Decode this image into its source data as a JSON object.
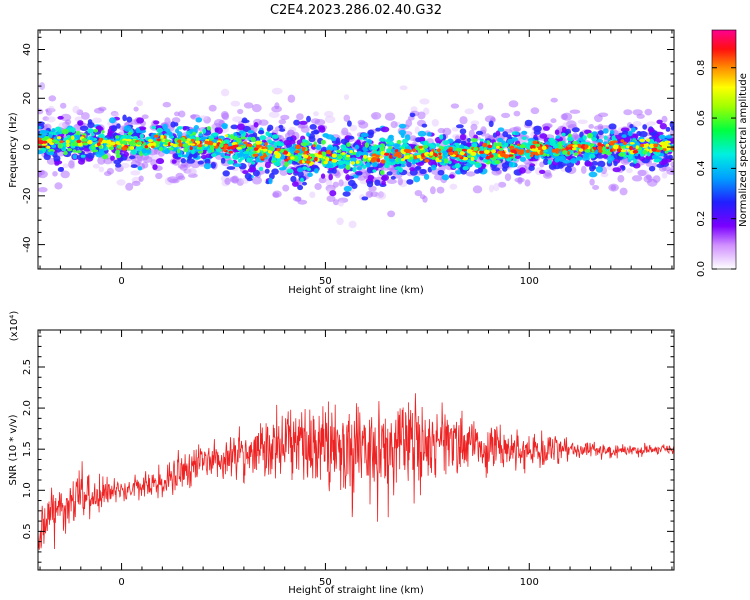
{
  "title": "C2E4.2023.286.02.40.G32",
  "chart_data": [
    {
      "type": "heatmap",
      "xlabel": "Height of straight line (km)",
      "ylabel": "Frequency (Hz)",
      "xlim": [
        -20.5,
        135.5
      ],
      "ylim": [
        -50,
        48
      ],
      "xticks": [
        0,
        50,
        100
      ],
      "yticks": [
        -40,
        -20,
        0,
        20,
        40
      ],
      "colorbar": {
        "label": "Normalized spectral amplitude",
        "range": [
          0,
          0.95
        ],
        "ticks": [
          0.0,
          0.2,
          0.4,
          0.6,
          0.8
        ],
        "colormap": "rainbow (white-purple-blue-cyan-green-yellow-red-magenta)"
      },
      "ridge_center_hz": {
        "x_km": [
          -20,
          -10,
          0,
          10,
          20,
          30,
          40,
          50,
          60,
          70,
          80,
          90,
          100,
          110,
          120,
          135
        ],
        "freq": [
          2,
          2,
          1,
          2,
          1,
          0,
          -3,
          -4,
          -4,
          -3,
          -3,
          -2,
          -1,
          -1,
          0,
          0
        ]
      }
    },
    {
      "type": "line",
      "xlabel": "Height of straight line (km)",
      "ylabel": "SNR (10 * v/v)",
      "y_multiplier": "(x10⁴)",
      "xlim": [
        -20.5,
        135.5
      ],
      "ylim": [
        0.03,
        2.95
      ],
      "xticks": [
        0,
        50,
        100
      ],
      "yticks": [
        0.5,
        1.0,
        1.5,
        2.0,
        2.5
      ],
      "series": [
        {
          "color": "#ee2222",
          "envelope": {
            "x_km": [
              -20,
              -10,
              0,
              10,
              20,
              30,
              40,
              50,
              60,
              70,
              80,
              90,
              100,
              110,
              120,
              135
            ],
            "center": [
              0.55,
              0.95,
              1.0,
              1.1,
              1.35,
              1.45,
              1.55,
              1.55,
              1.5,
              1.55,
              1.55,
              1.5,
              1.5,
              1.5,
              1.48,
              1.5
            ],
            "spread": [
              0.5,
              0.5,
              0.2,
              0.3,
              0.35,
              0.5,
              0.7,
              0.9,
              1.1,
              0.95,
              0.75,
              0.5,
              0.35,
              0.2,
              0.12,
              0.1
            ]
          }
        }
      ]
    }
  ]
}
